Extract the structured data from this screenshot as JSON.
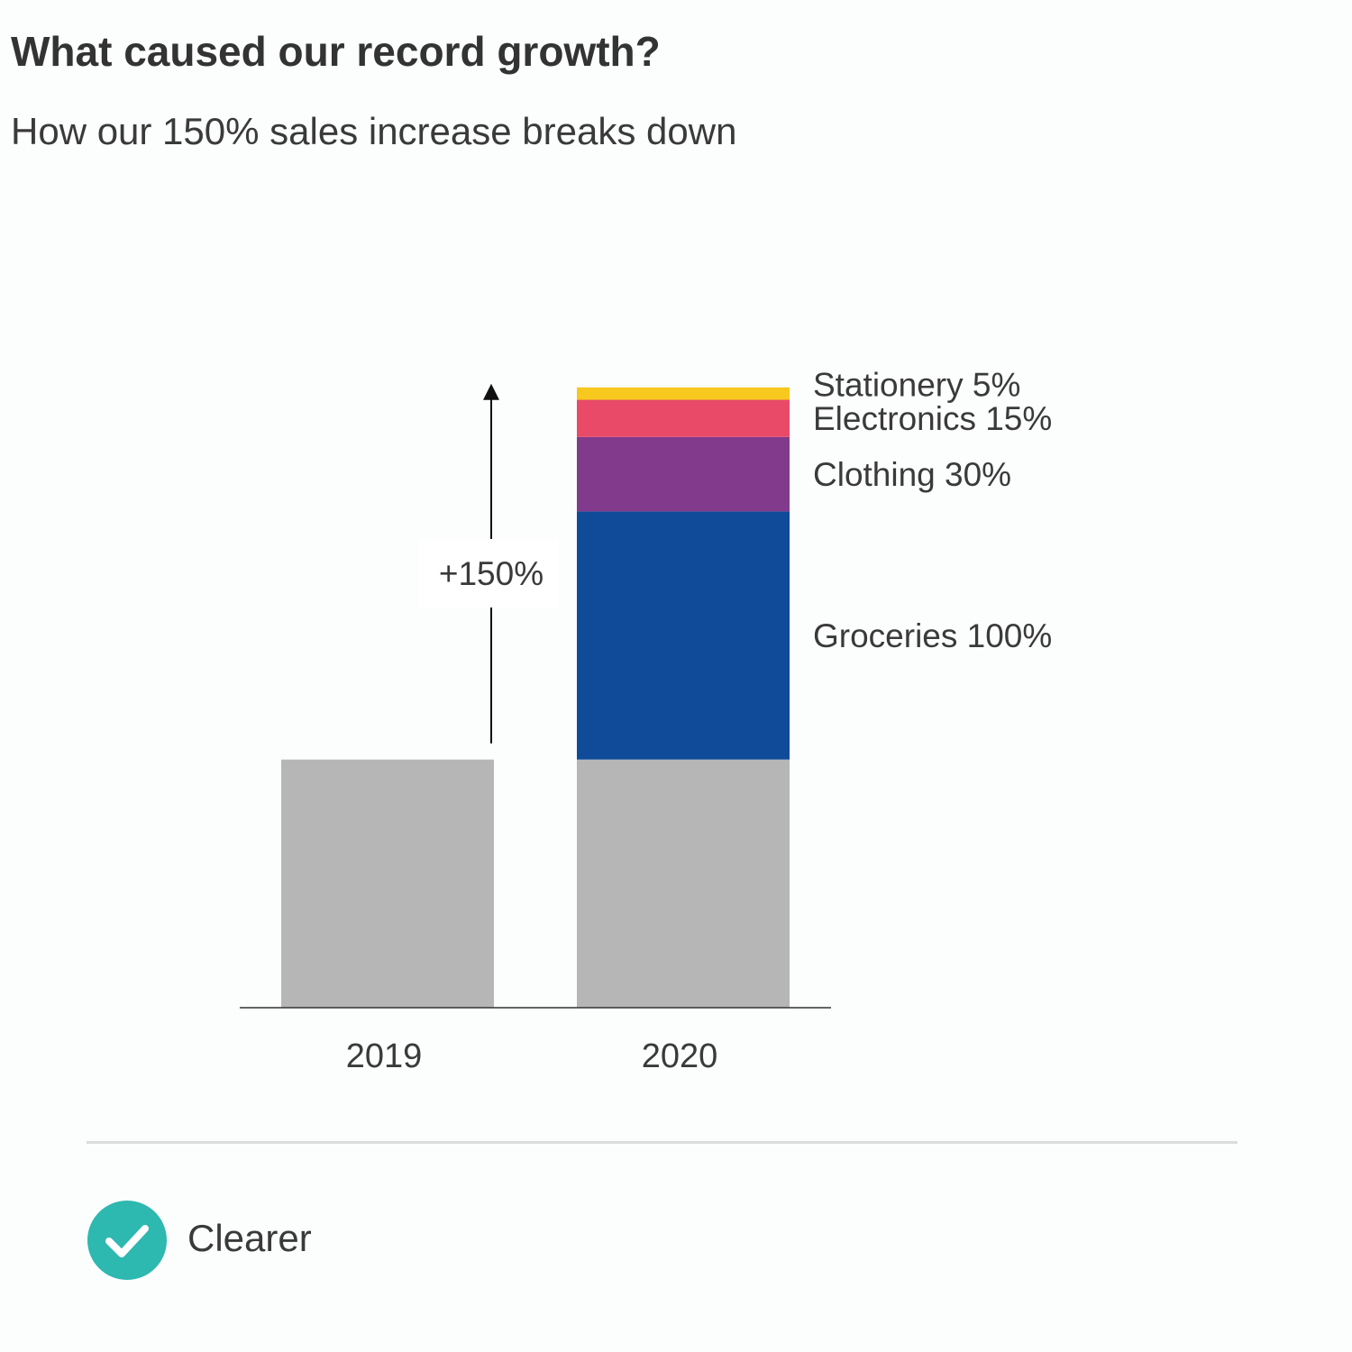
{
  "header": {
    "title": "What caused our record growth?",
    "subtitle": "How our 150% sales increase breaks down"
  },
  "chart_data": {
    "type": "bar",
    "stacked": true,
    "title": "What caused our record growth?",
    "subtitle": "How our 150% sales increase breaks down",
    "categories": [
      "2019",
      "2020"
    ],
    "ylim": [
      0,
      250
    ],
    "series": [
      {
        "name": "Base",
        "label": "",
        "values": [
          100,
          100
        ],
        "color": "#b6b6b6"
      },
      {
        "name": "Groceries",
        "label": "Groceries 100%",
        "values": [
          0,
          100
        ],
        "color": "#104b99"
      },
      {
        "name": "Clothing",
        "label": "Clothing 30%",
        "values": [
          0,
          30
        ],
        "color": "#823a8c"
      },
      {
        "name": "Electronics",
        "label": "Electronics 15%",
        "values": [
          0,
          15
        ],
        "color": "#e84a68"
      },
      {
        "name": "Stationery",
        "label": "Stationery 5%",
        "values": [
          0,
          5
        ],
        "color": "#f7c81e"
      }
    ],
    "annotation": {
      "text": "+150%",
      "value": 150
    }
  },
  "badge": {
    "label": "Clearer",
    "icon": "check-icon",
    "color": "#2db8b0"
  }
}
